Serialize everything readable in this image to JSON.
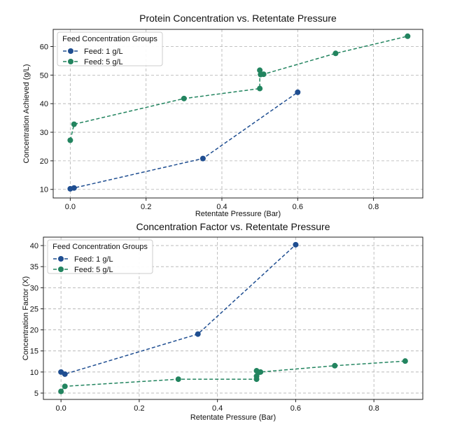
{
  "colors": {
    "series1": "#1f4e91",
    "series2": "#22845f",
    "grid": "#b0b0b0",
    "axis": "#222222"
  },
  "chart_data": [
    {
      "type": "line",
      "title": "Protein Concentration vs. Retentate Pressure",
      "xlabel": "Retentate Pressure (Bar)",
      "ylabel": "Concentration Achieved (g/L)",
      "xlim": [
        -0.045,
        0.93
      ],
      "ylim": [
        7,
        66
      ],
      "xticks": [
        0.0,
        0.2,
        0.4,
        0.6,
        0.8
      ],
      "xtick_labels": [
        "0.0",
        "0.2",
        "0.4",
        "0.6",
        "0.8"
      ],
      "yticks": [
        10,
        20,
        30,
        40,
        50,
        60
      ],
      "ytick_labels": [
        "10",
        "20",
        "30",
        "40",
        "50",
        "60"
      ],
      "grid": true,
      "legend": {
        "title": "Feed Concentration Groups",
        "placement": "top-left"
      },
      "series": [
        {
          "name": "Feed: 1 g/L",
          "color_key": "series1",
          "points": [
            [
              0.0,
              10.2
            ],
            [
              0.01,
              10.5
            ],
            [
              0.35,
              20.8
            ],
            [
              0.6,
              44.0
            ]
          ]
        },
        {
          "name": "Feed: 5 g/L",
          "color_key": "series2",
          "points": [
            [
              0.0,
              27.2
            ],
            [
              0.01,
              32.8
            ],
            [
              0.3,
              41.8
            ],
            [
              0.5,
              45.3
            ],
            [
              0.5,
              51.7
            ],
            [
              0.502,
              50.2
            ],
            [
              0.51,
              50.3
            ],
            [
              0.7,
              57.6
            ],
            [
              0.89,
              63.6
            ]
          ]
        }
      ]
    },
    {
      "type": "line",
      "title": "Concentration Factor vs. Retentate Pressure",
      "xlabel": "Retentate Pressure (Bar)",
      "ylabel": "Concentration Factor (X)",
      "xlim": [
        -0.045,
        0.925
      ],
      "ylim": [
        3.5,
        42
      ],
      "xticks": [
        0.0,
        0.2,
        0.4,
        0.6,
        0.8
      ],
      "xtick_labels": [
        "0.0",
        "0.2",
        "0.4",
        "0.6",
        "0.8"
      ],
      "yticks": [
        5,
        10,
        15,
        20,
        25,
        30,
        35,
        40
      ],
      "ytick_labels": [
        "5",
        "10",
        "15",
        "20",
        "25",
        "30",
        "35",
        "40"
      ],
      "grid": true,
      "legend": {
        "title": "Feed Concentration Groups",
        "placement": "top-left"
      },
      "series": [
        {
          "name": "Feed: 1 g/L",
          "color_key": "series1",
          "points": [
            [
              0.0,
              10.0
            ],
            [
              0.01,
              9.5
            ],
            [
              0.35,
              19.0
            ],
            [
              0.6,
              40.2
            ]
          ]
        },
        {
          "name": "Feed: 5 g/L",
          "color_key": "series2",
          "points": [
            [
              0.0,
              5.4
            ],
            [
              0.01,
              6.6
            ],
            [
              0.3,
              8.3
            ],
            [
              0.5,
              8.3
            ],
            [
              0.5,
              9.0
            ],
            [
              0.5,
              10.3
            ],
            [
              0.505,
              9.9
            ],
            [
              0.51,
              10.0
            ],
            [
              0.7,
              11.5
            ],
            [
              0.88,
              12.6
            ]
          ]
        }
      ]
    }
  ]
}
